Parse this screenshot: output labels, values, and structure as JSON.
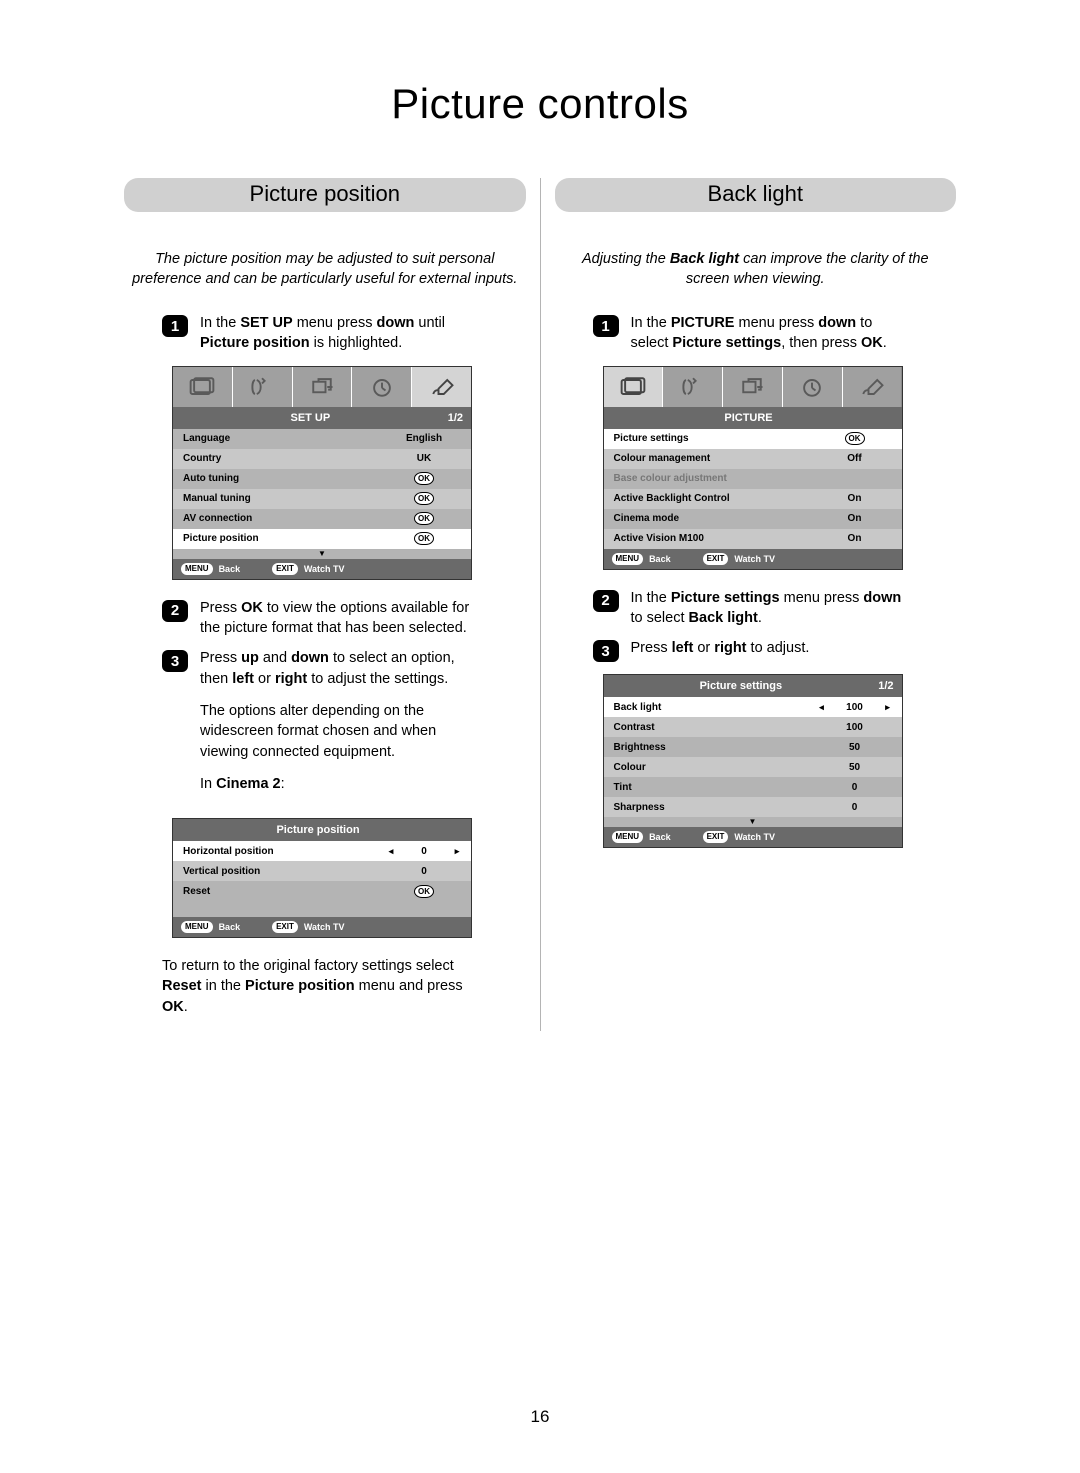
{
  "page": {
    "title": "Picture controls",
    "number": "16"
  },
  "colors": {
    "grey_dark": "#6a6a6a",
    "grey_med": "#8a8a8a",
    "grey_light": "#b4b4b4",
    "grey_lighter": "#d0d0d0",
    "tab_bg": "#a0a0a0",
    "selected": "#ffffff"
  },
  "left": {
    "header": "Picture position",
    "intro": "The picture position may be adjusted to suit personal preference and can be particularly useful for external inputs.",
    "steps": {
      "1": {
        "html": "In the <b>SET UP</b> menu press <b>down</b> until <b>Picture position</b> is highlighted."
      },
      "2": {
        "html": "Press <b>OK</b> to view the options available for the picture format that has been selected."
      },
      "3": {
        "p1": "Press <b>up</b> and <b>down</b> to select an option, then <b>left</b> or <b>right</b> to adjust the settings.",
        "p2": "The options alter depending on the widescreen format chosen and when viewing connected equipment.",
        "p3": "In <b>Cinema 2</b>:",
        "p4": "To return to the original factory settings select <b>Reset</b> in the <b>Picture position</b> menu and press <b>OK</b>."
      }
    },
    "osd_setup": {
      "title": "SET UP",
      "page": "1/2",
      "rows": [
        {
          "label": "Language",
          "value": "English",
          "type": "text",
          "sel": false
        },
        {
          "label": "Country",
          "value": "UK",
          "type": "text",
          "sel": false
        },
        {
          "label": "Auto tuning",
          "value": "OK",
          "type": "ok",
          "sel": false
        },
        {
          "label": "Manual tuning",
          "value": "OK",
          "type": "ok",
          "sel": false
        },
        {
          "label": "AV connection",
          "value": "OK",
          "type": "ok",
          "sel": false
        },
        {
          "label": "Picture position",
          "value": "OK",
          "type": "ok",
          "sel": true
        }
      ],
      "foot": {
        "menu": "MENU",
        "back": "Back",
        "exit": "EXIT",
        "watch": "Watch TV"
      }
    },
    "osd_pos": {
      "title": "Picture position",
      "page": "",
      "rows": [
        {
          "label": "Horizontal position",
          "value": "0",
          "type": "slider",
          "sel": true
        },
        {
          "label": "Vertical position",
          "value": "0",
          "type": "text",
          "sel": false
        },
        {
          "label": "Reset",
          "value": "OK",
          "type": "ok",
          "sel": false
        }
      ],
      "foot": {
        "menu": "MENU",
        "back": "Back",
        "exit": "EXIT",
        "watch": "Watch TV"
      }
    }
  },
  "right": {
    "header": "Back light",
    "intro_html": "Adjusting the <b>Back light</b> can improve the clarity of the screen when viewing.",
    "steps": {
      "1": {
        "html": "In the <b>PICTURE</b> menu press <b>down</b> to select <b>Picture settings</b>, then press <b>OK</b>."
      },
      "2": {
        "html": "In the <b>Picture settings</b> menu press <b>down</b> to select <b>Back light</b>."
      },
      "3": {
        "html": "Press <b>left</b> or <b>right</b> to adjust."
      }
    },
    "osd_picture": {
      "title": "PICTURE",
      "page": "",
      "rows": [
        {
          "label": "Picture settings",
          "value": "OK",
          "type": "ok",
          "sel": true
        },
        {
          "label": "Colour management",
          "value": "Off",
          "type": "text",
          "sel": false
        },
        {
          "label": "Base colour adjustment",
          "value": "",
          "type": "dim",
          "sel": false
        },
        {
          "label": "Active Backlight Control",
          "value": "On",
          "type": "text",
          "sel": false
        },
        {
          "label": "Cinema mode",
          "value": "On",
          "type": "text",
          "sel": false
        },
        {
          "label": "Active Vision M100",
          "value": "On",
          "type": "text",
          "sel": false
        }
      ],
      "foot": {
        "menu": "MENU",
        "back": "Back",
        "exit": "EXIT",
        "watch": "Watch TV"
      }
    },
    "osd_psettings": {
      "title": "Picture settings",
      "page": "1/2",
      "rows": [
        {
          "label": "Back light",
          "value": "100",
          "type": "slider",
          "sel": true
        },
        {
          "label": "Contrast",
          "value": "100",
          "type": "text",
          "sel": false
        },
        {
          "label": "Brightness",
          "value": "50",
          "type": "text",
          "sel": false
        },
        {
          "label": "Colour",
          "value": "50",
          "type": "text",
          "sel": false
        },
        {
          "label": "Tint",
          "value": "0",
          "type": "text",
          "sel": false
        },
        {
          "label": "Sharpness",
          "value": "0",
          "type": "text",
          "sel": false
        }
      ],
      "foot": {
        "menu": "MENU",
        "back": "Back",
        "exit": "EXIT",
        "watch": "Watch TV"
      }
    }
  }
}
